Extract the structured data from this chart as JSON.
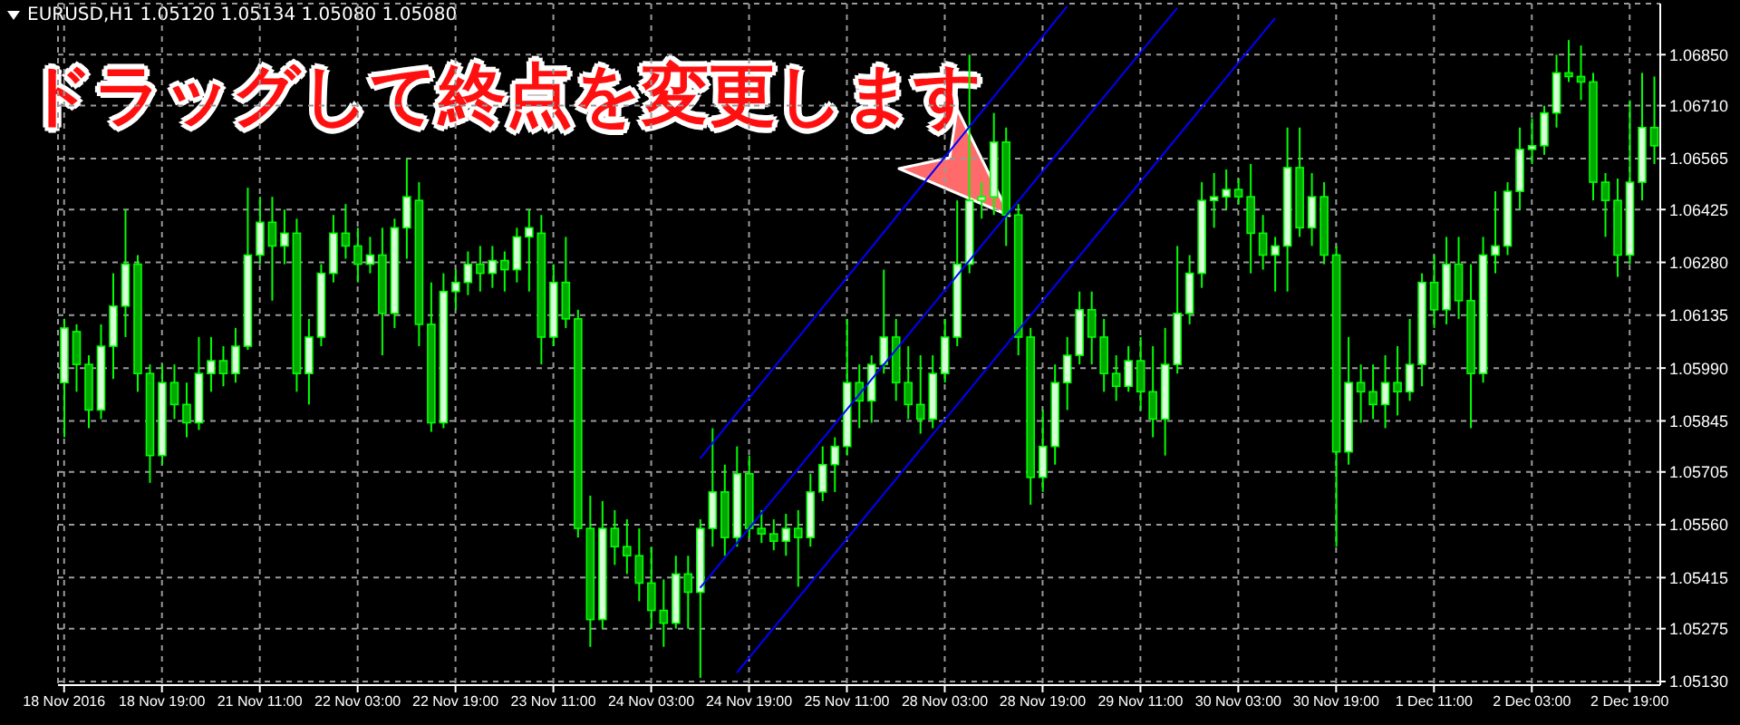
{
  "chart_data": {
    "type": "candlestick",
    "title": "EURUSD,H1 1.05120 1.05134 1.05080 1.05080",
    "annotations": [
      "ドラッグして終点を変更します"
    ],
    "color": "#00ff00",
    "categories": [
      "18 Nov 2016",
      null,
      null,
      null,
      null,
      null,
      null,
      null,
      "18 Nov 19:00",
      null,
      null,
      null,
      null,
      null,
      null,
      null,
      "21 Nov 11:00",
      null,
      null,
      null,
      null,
      null,
      null,
      null,
      "22 Nov 03:00",
      null,
      null,
      null,
      null,
      null,
      null,
      null,
      "22 Nov 19:00",
      null,
      null,
      null,
      null,
      null,
      null,
      null,
      "23 Nov 11:00",
      null,
      null,
      null,
      null,
      null,
      null,
      null,
      "24 Nov 03:00",
      null,
      null,
      null,
      null,
      null,
      null,
      null,
      "24 Nov 19:00",
      null,
      null,
      null,
      null,
      null,
      null,
      null,
      "25 Nov 11:00",
      null,
      null,
      null,
      null,
      null,
      null,
      null,
      "28 Nov 03:00",
      null,
      null,
      null,
      null,
      null,
      null,
      null,
      "28 Nov 19:00",
      null,
      null,
      null,
      null,
      null,
      null,
      null,
      "29 Nov 11:00",
      null,
      null,
      null,
      null,
      null,
      null,
      null,
      "30 Nov 03:00",
      null,
      null,
      null,
      null,
      null,
      null,
      null,
      "30 Nov 19:00",
      null,
      null,
      null,
      null,
      null,
      null,
      null,
      "1 Dec 11:00",
      null,
      null,
      null,
      null,
      null,
      null,
      null,
      "2 Dec 03:00",
      null,
      null,
      null,
      null,
      null,
      null,
      null,
      "2 Dec 19:00",
      null,
      null
    ],
    "ohlc": [
      [
        1.0595,
        1.06125,
        1.058,
        1.061
      ],
      [
        1.0609,
        1.0611,
        1.05925,
        1.06
      ],
      [
        1.06,
        1.06025,
        1.05825,
        1.05875
      ],
      [
        1.05875,
        1.0611,
        1.0585,
        1.0605
      ],
      [
        1.0605,
        1.0625,
        1.0596,
        1.0616
      ],
      [
        1.0616,
        1.06425,
        1.06075,
        1.06275
      ],
      [
        1.06275,
        1.063,
        1.05925,
        1.05975
      ],
      [
        1.05975,
        1.06,
        1.05675,
        1.0575
      ],
      [
        1.0575,
        1.06,
        1.05725,
        1.0595
      ],
      [
        1.0595,
        1.06,
        1.0585,
        1.0589
      ],
      [
        1.0589,
        1.0595,
        1.058,
        1.0584
      ],
      [
        1.0584,
        1.06075,
        1.0582,
        1.05975
      ],
      [
        1.05975,
        1.06075,
        1.05925,
        1.0601
      ],
      [
        1.0601,
        1.0605,
        1.0594,
        1.05975
      ],
      [
        1.05975,
        1.061,
        1.0595,
        1.0605
      ],
      [
        1.0605,
        1.06485,
        1.0604,
        1.063
      ],
      [
        1.063,
        1.0646,
        1.06275,
        1.0639
      ],
      [
        1.0639,
        1.0646,
        1.06175,
        1.06325
      ],
      [
        1.06325,
        1.06425,
        1.06275,
        1.0636
      ],
      [
        1.0636,
        1.064,
        1.05925,
        1.05975
      ],
      [
        1.05975,
        1.06125,
        1.0589,
        1.06075
      ],
      [
        1.06075,
        1.06275,
        1.0605,
        1.0625
      ],
      [
        1.0625,
        1.0641,
        1.06225,
        1.0636
      ],
      [
        1.0636,
        1.0644,
        1.0629,
        1.06325
      ],
      [
        1.06325,
        1.06375,
        1.06225,
        1.06275
      ],
      [
        1.06275,
        1.0635,
        1.0625,
        1.063
      ],
      [
        1.063,
        1.06375,
        1.06025,
        1.0614
      ],
      [
        1.0614,
        1.064,
        1.061,
        1.06375
      ],
      [
        1.06375,
        1.06565,
        1.0629,
        1.0646
      ],
      [
        1.0645,
        1.065,
        1.0605,
        1.0611
      ],
      [
        1.0611,
        1.06225,
        1.05815,
        1.0584
      ],
      [
        1.0584,
        1.0625,
        1.05825,
        1.062
      ],
      [
        1.062,
        1.0626,
        1.0615,
        1.06225
      ],
      [
        1.06225,
        1.0631,
        1.0619,
        1.06275
      ],
      [
        1.06275,
        1.06325,
        1.062,
        1.0625
      ],
      [
        1.0625,
        1.06325,
        1.0621,
        1.06285
      ],
      [
        1.06285,
        1.0631,
        1.062,
        1.0626
      ],
      [
        1.0626,
        1.06375,
        1.06225,
        1.0635
      ],
      [
        1.0635,
        1.06425,
        1.062,
        1.06375
      ],
      [
        1.0636,
        1.0641,
        1.06,
        1.06075
      ],
      [
        1.06075,
        1.06275,
        1.0605,
        1.06225
      ],
      [
        1.06225,
        1.0635,
        1.061,
        1.06125
      ],
      [
        1.06125,
        1.0615,
        1.05525,
        1.0555
      ],
      [
        1.0555,
        1.0564,
        1.05225,
        1.053
      ],
      [
        1.053,
        1.05625,
        1.05275,
        1.0555
      ],
      [
        1.0555,
        1.056,
        1.0545,
        1.055
      ],
      [
        1.055,
        1.05575,
        1.05425,
        1.05475
      ],
      [
        1.05475,
        1.0555,
        1.0535,
        1.054
      ],
      [
        1.054,
        1.055,
        1.05275,
        1.05325
      ],
      [
        1.05325,
        1.0541,
        1.05225,
        1.0529
      ],
      [
        1.0529,
        1.05475,
        1.05275,
        1.05425
      ],
      [
        1.05425,
        1.05475,
        1.05275,
        1.05375
      ],
      [
        1.05375,
        1.05575,
        1.0514,
        1.0555
      ],
      [
        1.0555,
        1.05825,
        1.055,
        1.0565
      ],
      [
        1.0565,
        1.05725,
        1.05475,
        1.05525
      ],
      [
        1.05525,
        1.05775,
        1.055,
        1.057
      ],
      [
        1.057,
        1.0575,
        1.05525,
        1.0555
      ],
      [
        1.0555,
        1.056,
        1.0551,
        1.05535
      ],
      [
        1.05535,
        1.05575,
        1.0549,
        1.05515
      ],
      [
        1.05515,
        1.0559,
        1.05475,
        1.0555
      ],
      [
        1.0555,
        1.056,
        1.0539,
        1.05525
      ],
      [
        1.05525,
        1.057,
        1.055,
        1.0565
      ],
      [
        1.0565,
        1.05775,
        1.05625,
        1.05725
      ],
      [
        1.05725,
        1.058,
        1.0565,
        1.05775
      ],
      [
        1.05775,
        1.06125,
        1.0575,
        1.0595
      ],
      [
        1.0595,
        1.06,
        1.05825,
        1.059
      ],
      [
        1.059,
        1.06025,
        1.0584,
        1.06
      ],
      [
        1.06,
        1.0626,
        1.05975,
        1.06075
      ],
      [
        1.06075,
        1.06125,
        1.059,
        1.0595
      ],
      [
        1.0595,
        1.0605,
        1.0585,
        1.0589
      ],
      [
        1.0589,
        1.06025,
        1.0581,
        1.0585
      ],
      [
        1.0585,
        1.06025,
        1.05825,
        1.05975
      ],
      [
        1.05975,
        1.06125,
        1.0595,
        1.06075
      ],
      [
        1.06075,
        1.0645,
        1.0605,
        1.06275
      ],
      [
        1.06275,
        1.0685,
        1.0625,
        1.0645
      ],
      [
        1.0645,
        1.065,
        1.064,
        1.0646
      ],
      [
        1.0646,
        1.0669,
        1.0641,
        1.0661
      ],
      [
        1.0661,
        1.0665,
        1.06325,
        1.0641
      ],
      [
        1.0641,
        1.0644,
        1.06025,
        1.06075
      ],
      [
        1.06075,
        1.061,
        1.05615,
        1.0569
      ],
      [
        1.0569,
        1.05875,
        1.0565,
        1.05775
      ],
      [
        1.05775,
        1.06,
        1.05725,
        1.0595
      ],
      [
        1.0595,
        1.06075,
        1.05875,
        1.06025
      ],
      [
        1.06025,
        1.062,
        1.06,
        1.0615
      ],
      [
        1.0615,
        1.062,
        1.06,
        1.06075
      ],
      [
        1.06075,
        1.06125,
        1.05925,
        1.05975
      ],
      [
        1.05975,
        1.06025,
        1.059,
        1.0594
      ],
      [
        1.0594,
        1.0605,
        1.05925,
        1.0601
      ],
      [
        1.0601,
        1.06075,
        1.05875,
        1.05925
      ],
      [
        1.05925,
        1.0605,
        1.058,
        1.0585
      ],
      [
        1.0585,
        1.061,
        1.0575,
        1.06
      ],
      [
        1.06,
        1.06325,
        1.05975,
        1.0614
      ],
      [
        1.0614,
        1.063,
        1.0611,
        1.0625
      ],
      [
        1.0625,
        1.065,
        1.0621,
        1.0645
      ],
      [
        1.0645,
        1.06525,
        1.06375,
        1.0646
      ],
      [
        1.0646,
        1.06535,
        1.06425,
        1.0648
      ],
      [
        1.0648,
        1.0651,
        1.0644,
        1.0646
      ],
      [
        1.0646,
        1.0655,
        1.0625,
        1.0636
      ],
      [
        1.0636,
        1.0641,
        1.0626,
        1.063
      ],
      [
        1.063,
        1.0635,
        1.062,
        1.06325
      ],
      [
        1.06325,
        1.0665,
        1.062,
        1.0654
      ],
      [
        1.0654,
        1.0665,
        1.0635,
        1.06375
      ],
      [
        1.06375,
        1.06525,
        1.06325,
        1.0646
      ],
      [
        1.0646,
        1.065,
        1.06275,
        1.063
      ],
      [
        1.063,
        1.06325,
        1.055,
        1.0576
      ],
      [
        1.0576,
        1.06075,
        1.05725,
        1.0595
      ],
      [
        1.0595,
        1.06,
        1.0584,
        1.05925
      ],
      [
        1.05925,
        1.06,
        1.0585,
        1.0589
      ],
      [
        1.0589,
        1.06025,
        1.05825,
        1.0595
      ],
      [
        1.0595,
        1.0605,
        1.0586,
        1.05925
      ],
      [
        1.05925,
        1.06125,
        1.059,
        1.06
      ],
      [
        1.06,
        1.0625,
        1.0594,
        1.06225
      ],
      [
        1.06225,
        1.063,
        1.061,
        1.0615
      ],
      [
        1.0615,
        1.0635,
        1.0611,
        1.06275
      ],
      [
        1.06275,
        1.0635,
        1.06125,
        1.06175
      ],
      [
        1.06175,
        1.06275,
        1.05825,
        1.05975
      ],
      [
        1.05975,
        1.0635,
        1.0595,
        1.063
      ],
      [
        1.063,
        1.06475,
        1.0625,
        1.06325
      ],
      [
        1.06325,
        1.065,
        1.063,
        1.06475
      ],
      [
        1.06475,
        1.0665,
        1.06425,
        1.0659
      ],
      [
        1.0659,
        1.06675,
        1.0655,
        1.066
      ],
      [
        1.066,
        1.0671,
        1.06575,
        1.0669
      ],
      [
        1.0669,
        1.0685,
        1.0665,
        1.068
      ],
      [
        1.068,
        1.0689,
        1.06775,
        1.0679
      ],
      [
        1.0679,
        1.06875,
        1.06725,
        1.06775
      ],
      [
        1.06775,
        1.068,
        1.0645,
        1.065
      ],
      [
        1.065,
        1.06525,
        1.0635,
        1.0645
      ],
      [
        1.0645,
        1.0651,
        1.0624,
        1.063
      ],
      [
        1.063,
        1.06725,
        1.06275,
        1.065
      ],
      [
        1.065,
        1.068,
        1.0645,
        1.0665
      ],
      [
        1.0665,
        1.0679,
        1.0655,
        1.066
      ]
    ],
    "series": [
      {
        "type": "line",
        "color": "#0000ff",
        "values": [
          null,
          null,
          null,
          null,
          null,
          null,
          null,
          null,
          null,
          null,
          null,
          null,
          null,
          null,
          null,
          null,
          null,
          null,
          null,
          null,
          null,
          null,
          null,
          null,
          null,
          null,
          null,
          null,
          null,
          null,
          null,
          null,
          null,
          null,
          null,
          null,
          null,
          null,
          null,
          null,
          null,
          null,
          null,
          null,
          null,
          null,
          null,
          null,
          null,
          null,
          null,
          null,
          1.05742,
          null,
          null,
          null,
          null,
          null,
          null,
          null,
          null,
          null,
          null,
          null,
          null,
          null,
          null,
          null,
          null,
          null,
          null,
          null,
          null,
          null,
          null,
          null,
          null,
          null,
          null,
          null,
          null,
          null,
          1.06982,
          null,
          null,
          null,
          null,
          null,
          null,
          null,
          null,
          null,
          null,
          null,
          null,
          null,
          null,
          null,
          null,
          null,
          null,
          null,
          null,
          null,
          null,
          null,
          null,
          null,
          null,
          null,
          null,
          null,
          null,
          null,
          null,
          null,
          null,
          null,
          null,
          null,
          null,
          null,
          null,
          null,
          null,
          null,
          null,
          null,
          null,
          null,
          null
        ]
      },
      {
        "type": "line",
        "color": "#0000ff",
        "values": [
          null,
          null,
          null,
          null,
          null,
          null,
          null,
          null,
          null,
          null,
          null,
          null,
          null,
          null,
          null,
          null,
          null,
          null,
          null,
          null,
          null,
          null,
          null,
          null,
          null,
          null,
          null,
          null,
          null,
          null,
          null,
          null,
          null,
          null,
          null,
          null,
          null,
          null,
          null,
          null,
          null,
          null,
          null,
          null,
          null,
          null,
          null,
          null,
          null,
          null,
          null,
          null,
          1.05387,
          null,
          null,
          null,
          null,
          null,
          null,
          null,
          null,
          null,
          null,
          null,
          null,
          null,
          null,
          null,
          null,
          null,
          null,
          null,
          null,
          null,
          null,
          null,
          null,
          null,
          null,
          null,
          null,
          null,
          null,
          null,
          null,
          null,
          null,
          null,
          null,
          null,
          null,
          1.06978,
          null,
          null,
          null,
          null,
          null,
          null,
          null,
          null,
          null,
          null,
          null,
          null,
          null,
          null,
          null,
          null,
          null,
          null,
          null,
          null,
          null,
          null,
          null,
          null,
          null,
          null,
          null,
          null,
          null,
          null,
          null,
          null,
          null,
          null,
          null,
          null,
          null,
          null,
          null
        ]
      },
      {
        "type": "line",
        "color": "#0000ff",
        "values": [
          null,
          null,
          null,
          null,
          null,
          null,
          null,
          null,
          null,
          null,
          null,
          null,
          null,
          null,
          null,
          null,
          null,
          null,
          null,
          null,
          null,
          null,
          null,
          null,
          null,
          null,
          null,
          null,
          null,
          null,
          null,
          null,
          null,
          null,
          null,
          null,
          null,
          null,
          null,
          null,
          null,
          null,
          null,
          null,
          null,
          null,
          null,
          null,
          null,
          null,
          null,
          null,
          null,
          null,
          null,
          1.05154,
          null,
          null,
          null,
          null,
          null,
          null,
          null,
          null,
          null,
          null,
          null,
          null,
          null,
          null,
          null,
          null,
          null,
          null,
          null,
          null,
          null,
          null,
          null,
          null,
          null,
          null,
          null,
          null,
          null,
          null,
          null,
          null,
          null,
          null,
          null,
          null,
          null,
          null,
          null,
          null,
          null,
          null,
          null,
          1.0695,
          null,
          null,
          null,
          null,
          null,
          null,
          null,
          null,
          null,
          null,
          null,
          null,
          null,
          null,
          null,
          null,
          null,
          null,
          null,
          null,
          null,
          null,
          null,
          null,
          null,
          null,
          null,
          null,
          null,
          null,
          null
        ]
      }
    ],
    "ylim": [
      1.0512,
      1.0699
    ],
    "yticks": [
      {
        "value": 1.0685,
        "label": "1.06850"
      },
      {
        "value": 1.0671,
        "label": "1.06710"
      },
      {
        "value": 1.06565,
        "label": "1.06565"
      },
      {
        "value": 1.06425,
        "label": "1.06425"
      },
      {
        "value": 1.0628,
        "label": "1.06280"
      },
      {
        "value": 1.06135,
        "label": "1.06135"
      },
      {
        "value": 1.0599,
        "label": "1.05990"
      },
      {
        "value": 1.05845,
        "label": "1.05845"
      },
      {
        "value": 1.05705,
        "label": "1.05705"
      },
      {
        "value": 1.0556,
        "label": "1.05560"
      },
      {
        "value": 1.05415,
        "label": "1.05415"
      },
      {
        "value": 1.05275,
        "label": "1.05275"
      },
      {
        "value": 1.0513,
        "label": "1.05130"
      }
    ],
    "grid": true
  }
}
